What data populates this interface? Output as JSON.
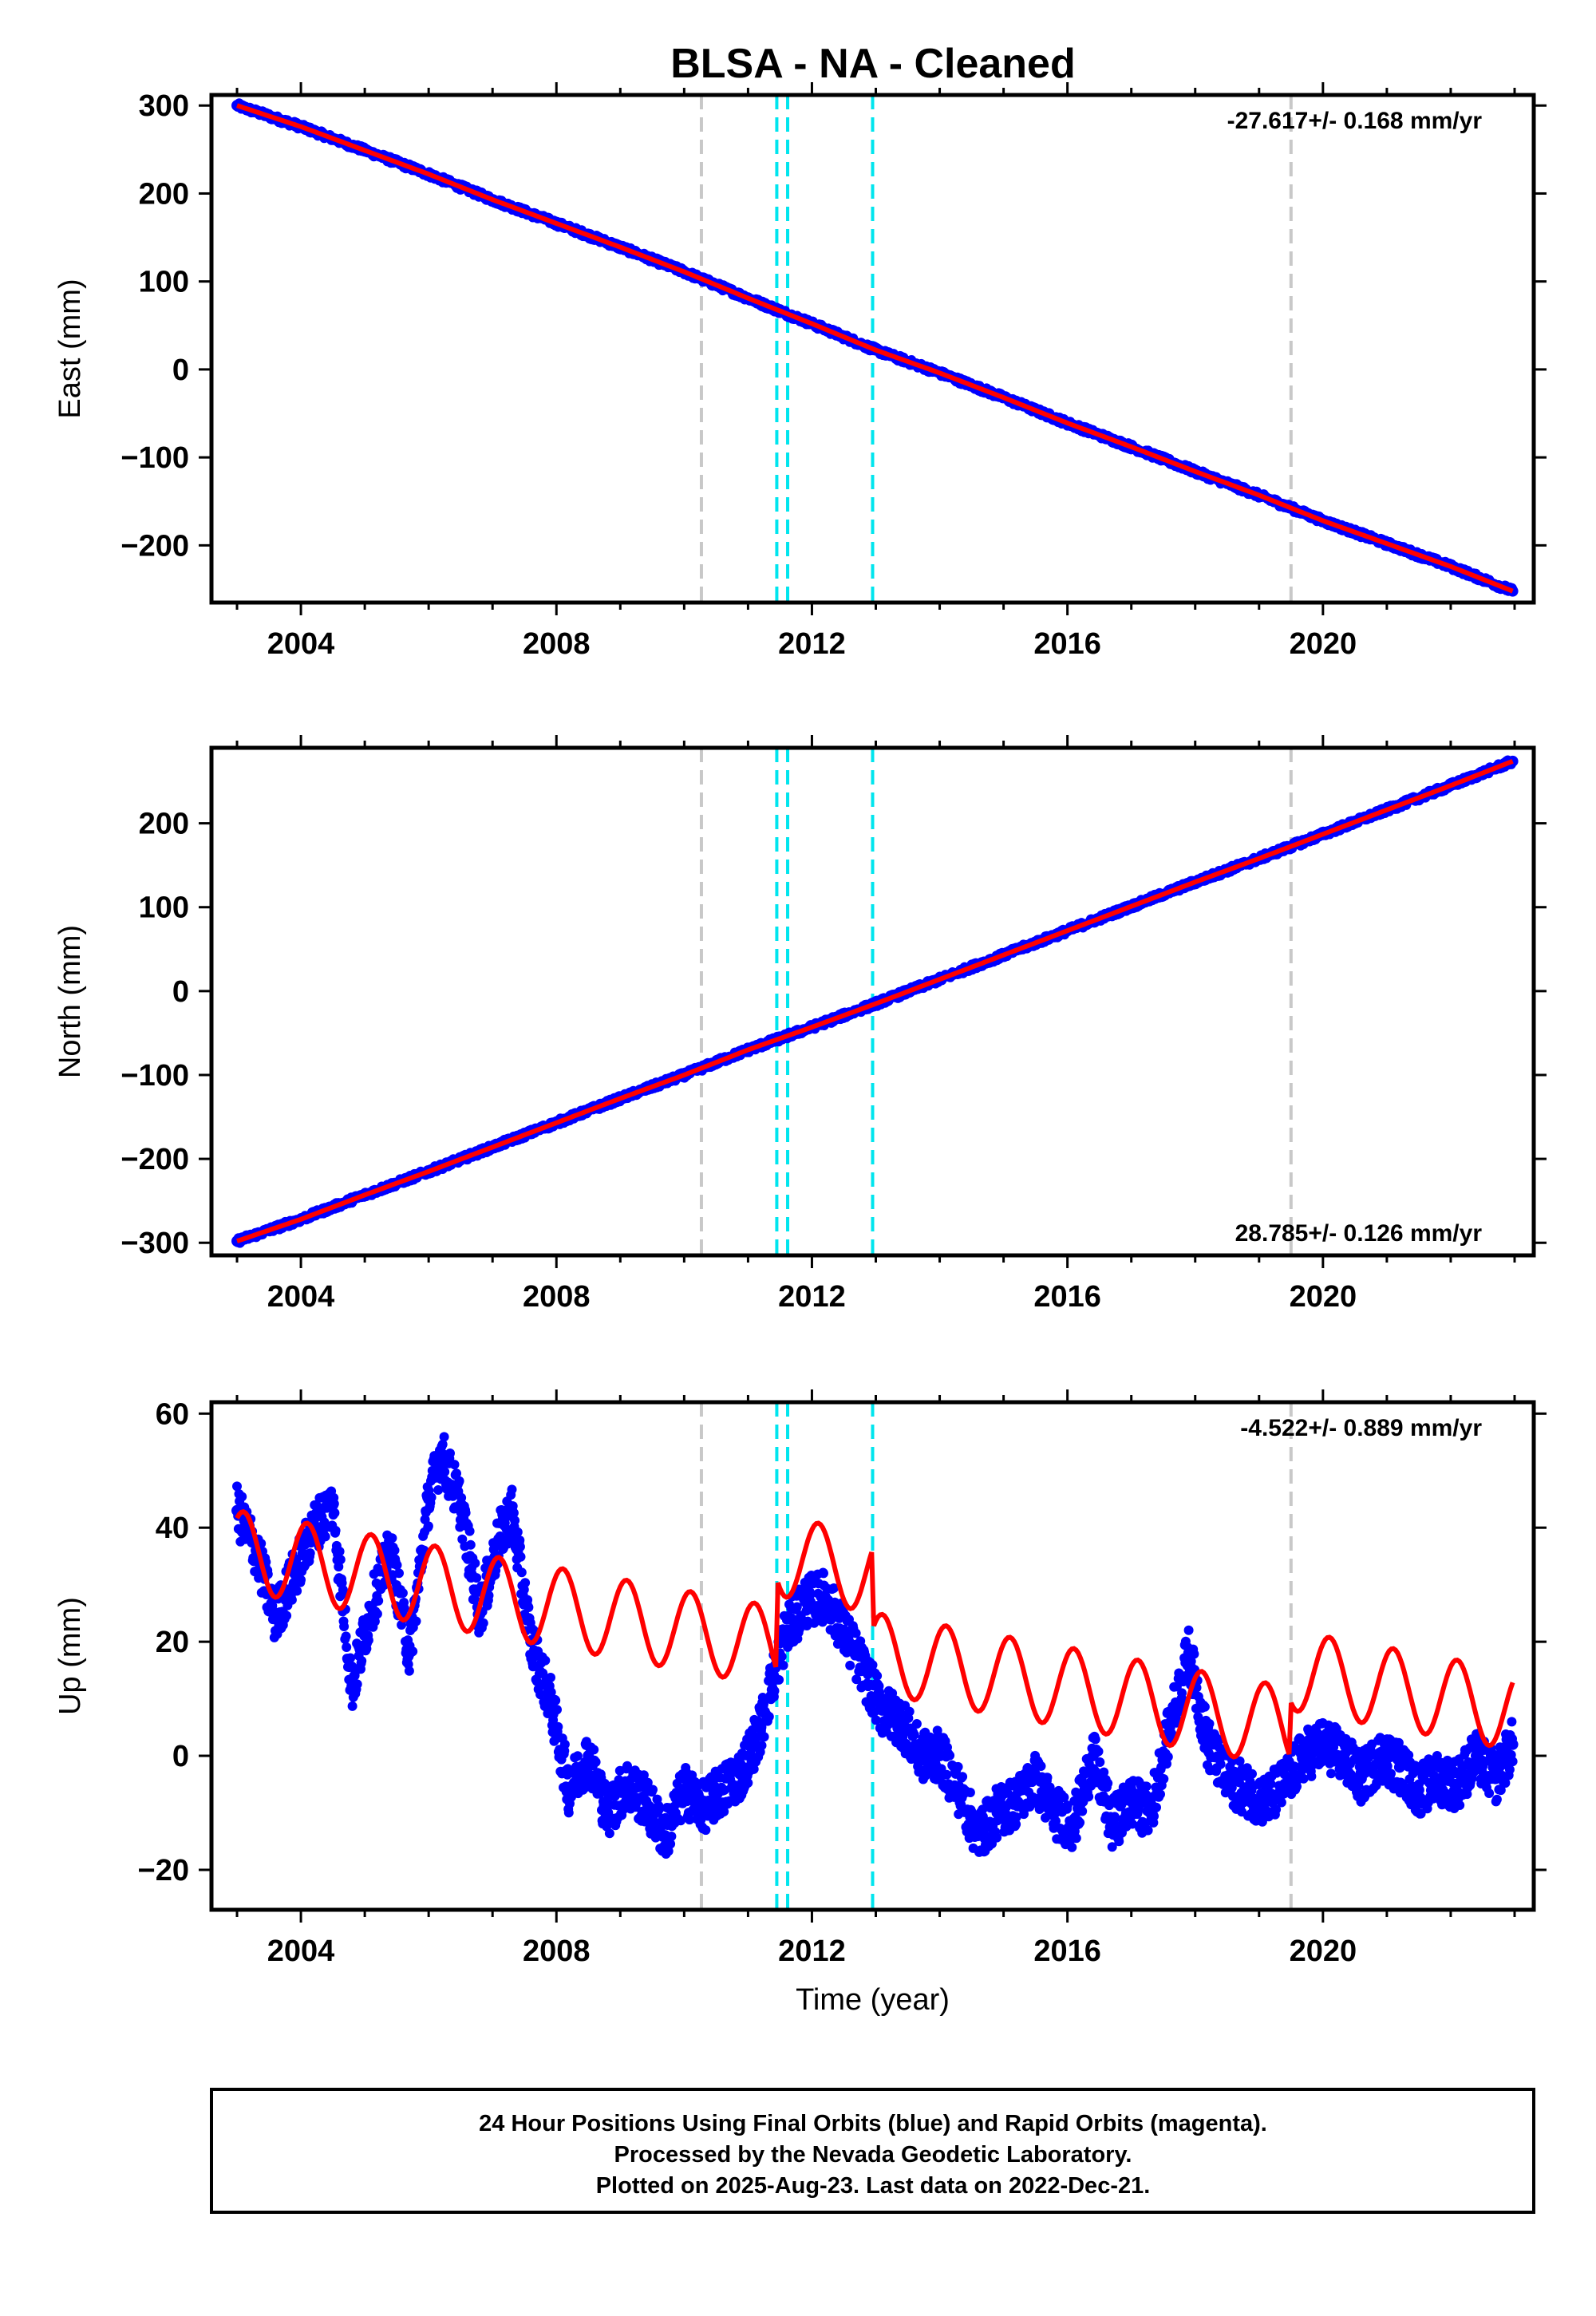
{
  "title": "BLSA  - NA - Cleaned",
  "footer": {
    "lines": [
      "24 Hour Positions Using Final Orbits (blue) and Rapid Orbits (magenta).",
      "Processed by the Nevada Geodetic Laboratory.",
      "Plotted on 2025-Aug-23. Last data on 2022-Dec-21."
    ]
  },
  "colors": {
    "data_points": "#0000ff",
    "model_fit": "#ff0000",
    "equipment_change": "#00e5ee",
    "other_event": "#c8c8c8"
  },
  "chart_data": [
    {
      "type": "scatter",
      "ylabel": "East (mm)",
      "xlabel": "",
      "xlim": [
        2002.6,
        2023.3
      ],
      "ylim": [
        -265,
        312
      ],
      "xticks": [
        2004,
        2008,
        2012,
        2016,
        2020
      ],
      "yticks": [
        -200,
        -100,
        0,
        100,
        200,
        300
      ],
      "rate": "-27.617+/- 0.168 mm/yr",
      "rate_position": "top-right",
      "series": [
        {
          "name": "",
          "points": [
            [
              2003.0,
              300
            ],
            [
              2004.0,
              276
            ],
            [
              2005.0,
              249
            ],
            [
              2006.0,
              222
            ],
            [
              2007.0,
              193
            ],
            [
              2008.0,
              166
            ],
            [
              2009.0,
              139
            ],
            [
              2010.0,
              111
            ],
            [
              2011.0,
              81
            ],
            [
              2012.0,
              52
            ],
            [
              2013.0,
              22
            ],
            [
              2014.0,
              -4
            ],
            [
              2015.0,
              -32
            ],
            [
              2016.0,
              -61
            ],
            [
              2017.0,
              -88
            ],
            [
              2018.0,
              -116
            ],
            [
              2019.0,
              -143
            ],
            [
              2020.0,
              -172
            ],
            [
              2021.0,
              -198
            ],
            [
              2022.0,
              -224
            ],
            [
              2022.97,
              -252
            ]
          ]
        }
      ],
      "vlines": [
        {
          "x": 2010.27,
          "kind": "other_event"
        },
        {
          "x": 2011.45,
          "kind": "equipment_change"
        },
        {
          "x": 2011.62,
          "kind": "equipment_change"
        },
        {
          "x": 2012.95,
          "kind": "equipment_change"
        },
        {
          "x": 2019.5,
          "kind": "other_event"
        }
      ]
    },
    {
      "type": "scatter",
      "ylabel": "North (mm)",
      "xlabel": "",
      "xlim": [
        2002.6,
        2023.3
      ],
      "ylim": [
        -315,
        290
      ],
      "xticks": [
        2004,
        2008,
        2012,
        2016,
        2020
      ],
      "yticks": [
        -300,
        -200,
        -100,
        0,
        100,
        200
      ],
      "rate": "28.785+/- 0.126 mm/yr",
      "rate_position": "bottom-right",
      "series": [
        {
          "name": "",
          "points": [
            [
              2003.0,
              -298
            ],
            [
              2004.0,
              -272
            ],
            [
              2005.0,
              -243
            ],
            [
              2006.0,
              -215
            ],
            [
              2007.0,
              -186
            ],
            [
              2008.0,
              -157
            ],
            [
              2009.0,
              -128
            ],
            [
              2010.0,
              -100
            ],
            [
              2011.0,
              -70
            ],
            [
              2012.0,
              -43
            ],
            [
              2013.0,
              -15
            ],
            [
              2014.0,
              14
            ],
            [
              2015.0,
              43
            ],
            [
              2016.0,
              72
            ],
            [
              2017.0,
              101
            ],
            [
              2018.0,
              130
            ],
            [
              2019.0,
              158
            ],
            [
              2020.0,
              187
            ],
            [
              2021.0,
              216
            ],
            [
              2022.0,
              245
            ],
            [
              2022.97,
              274
            ]
          ]
        }
      ],
      "vlines": [
        {
          "x": 2010.27,
          "kind": "other_event"
        },
        {
          "x": 2011.45,
          "kind": "equipment_change"
        },
        {
          "x": 2011.62,
          "kind": "equipment_change"
        },
        {
          "x": 2012.95,
          "kind": "equipment_change"
        },
        {
          "x": 2019.5,
          "kind": "other_event"
        }
      ]
    },
    {
      "type": "scatter",
      "ylabel": "Up (mm)",
      "xlabel": "Time (year)",
      "xlim": [
        2002.6,
        2023.3
      ],
      "ylim": [
        -27,
        62
      ],
      "xticks": [
        2004,
        2008,
        2012,
        2016,
        2020
      ],
      "yticks": [
        -20,
        0,
        20,
        40,
        60
      ],
      "rate": "-4.522+/- 0.889 mm/yr",
      "rate_position": "top-right",
      "series": [
        {
          "name": "",
          "points": [
            [
              2003.0,
              43
            ],
            [
              2003.3,
              36
            ],
            [
              2003.6,
              24
            ],
            [
              2003.9,
              32
            ],
            [
              2004.2,
              40
            ],
            [
              2004.5,
              44
            ],
            [
              2004.8,
              12
            ],
            [
              2005.1,
              26
            ],
            [
              2005.4,
              36
            ],
            [
              2005.7,
              18
            ],
            [
              2006.0,
              45
            ],
            [
              2006.2,
              53
            ],
            [
              2006.5,
              44
            ],
            [
              2006.8,
              25
            ],
            [
              2007.1,
              38
            ],
            [
              2007.3,
              43
            ],
            [
              2007.6,
              20
            ],
            [
              2007.9,
              10
            ],
            [
              2008.2,
              -6
            ],
            [
              2008.5,
              0
            ],
            [
              2008.8,
              -10
            ],
            [
              2009.1,
              -5
            ],
            [
              2009.4,
              -8
            ],
            [
              2009.7,
              -14
            ],
            [
              2010.0,
              -6
            ],
            [
              2010.3,
              -9
            ],
            [
              2010.6,
              -6
            ],
            [
              2010.9,
              -3
            ],
            [
              2011.2,
              5
            ],
            [
              2011.4,
              14
            ],
            [
              2011.6,
              22
            ],
            [
              2011.9,
              27
            ],
            [
              2012.2,
              28
            ],
            [
              2012.5,
              22
            ],
            [
              2012.8,
              15
            ],
            [
              2013.1,
              8
            ],
            [
              2013.4,
              6
            ],
            [
              2013.7,
              0
            ],
            [
              2014.0,
              0
            ],
            [
              2014.3,
              -6
            ],
            [
              2014.6,
              -14
            ],
            [
              2014.9,
              -10
            ],
            [
              2015.2,
              -8
            ],
            [
              2015.5,
              -4
            ],
            [
              2015.8,
              -10
            ],
            [
              2016.1,
              -12
            ],
            [
              2016.4,
              0
            ],
            [
              2016.7,
              -12
            ],
            [
              2017.0,
              -8
            ],
            [
              2017.3,
              -10
            ],
            [
              2017.6,
              5
            ],
            [
              2017.9,
              18
            ],
            [
              2018.2,
              2
            ],
            [
              2018.5,
              -4
            ],
            [
              2018.8,
              -6
            ],
            [
              2019.1,
              -8
            ],
            [
              2019.4,
              -5
            ],
            [
              2019.7,
              0
            ],
            [
              2020.0,
              2
            ],
            [
              2020.3,
              0
            ],
            [
              2020.6,
              -4
            ],
            [
              2020.9,
              0
            ],
            [
              2021.2,
              -2
            ],
            [
              2021.5,
              -6
            ],
            [
              2021.8,
              -4
            ],
            [
              2022.1,
              -5
            ],
            [
              2022.4,
              0
            ],
            [
              2022.7,
              -4
            ],
            [
              2022.97,
              2
            ]
          ]
        }
      ],
      "vlines": [
        {
          "x": 2010.27,
          "kind": "other_event"
        },
        {
          "x": 2011.45,
          "kind": "equipment_change"
        },
        {
          "x": 2011.62,
          "kind": "equipment_change"
        },
        {
          "x": 2012.95,
          "kind": "equipment_change"
        },
        {
          "x": 2019.5,
          "kind": "other_event"
        }
      ]
    }
  ]
}
